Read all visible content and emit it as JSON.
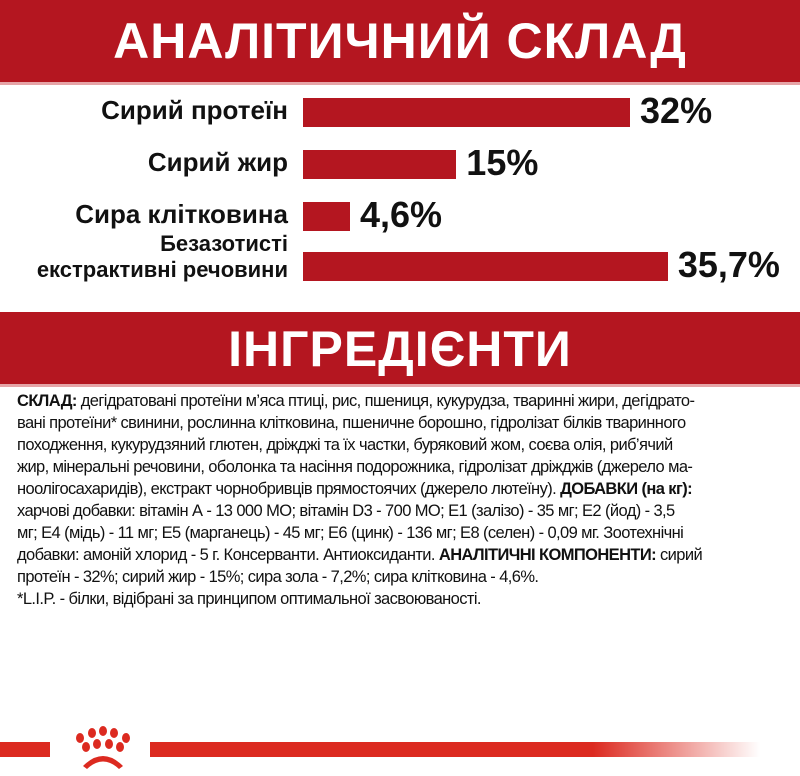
{
  "header": {
    "title": "АНАЛІТИЧНИЙ СКЛАД"
  },
  "chart_data": {
    "type": "bar",
    "orientation": "horizontal",
    "categories": [
      "Сирий протеїн",
      "Сирий жир",
      "Сира клітковина",
      "Безазотисті екстрактивні речовини"
    ],
    "values": [
      32,
      15,
      4.6,
      35.7
    ],
    "data_labels": [
      "32%",
      "15%",
      "4,6%",
      "35,7%"
    ],
    "bar_color": "#b41620",
    "grid": false
  },
  "labels": {
    "l0": "Сирий протеїн",
    "l1": "Сирий жир",
    "l2": "Сира клітковина",
    "l3a": "Безазотисті",
    "l3b": "екстрактивні речовини"
  },
  "ingredients": {
    "title": "ІНГРЕДІЄНТИ",
    "lines": [
      [
        {
          "b": true,
          "t": "СКЛАД:"
        },
        {
          "t": " дегідратовані протеїни м’яса птиці, рис, пшениця, кукурудза, тваринні жири, дегідрато-"
        }
      ],
      [
        {
          "t": "вані протеїни* свинини, рослинна клітковина, пшеничне борошно, гідролізат білків тваринного"
        }
      ],
      [
        {
          "t": "походження, кукурудзяний глютен, дріжджі та їх частки, буряковий жом, соєва олія, риб’ячий"
        }
      ],
      [
        {
          "t": "жир, мінеральні речовини, оболонка та насіння подорожника, гідролізат дріжджів (джерело ма-"
        }
      ],
      [
        {
          "t": "ноолігосахаридів), екстракт чорнобривців прямостоячих (джерело лютеїну). "
        },
        {
          "b": true,
          "t": "ДОБАВКИ (на кг):"
        }
      ],
      [
        {
          "t": "харчові добавки: вітамін А - 13 000 МО; вітамін D3 - 700 МО; Е1 (залізо) - 35 мг; Е2 (йод) - 3,5"
        }
      ],
      [
        {
          "t": "мг; Е4 (мідь) - 11 мг; Е5 (марганець) - 45 мг; Е6 (цинк) - 136 мг; Е8 (селен) - 0,09 мг. Зоотехнічні"
        }
      ],
      [
        {
          "t": "добавки: амоній хлорид - 5 г. Консерванти. Антиоксиданти. "
        },
        {
          "b": true,
          "t": "АНАЛІТИЧНІ КОМПОНЕНТИ:"
        },
        {
          "t": " сирий"
        }
      ],
      [
        {
          "t": "протеїн - 32%; сирий жир - 15%; сира зола - 7,2%; сира клітковина - 4,6%."
        }
      ],
      [
        {
          "t": "*L.I.P. - білки, відібрані за принципом оптимальної засвоюваності."
        }
      ]
    ]
  },
  "footer": {
    "logo": "Royal Canin crown logo",
    "accent": "#dc2a20"
  }
}
